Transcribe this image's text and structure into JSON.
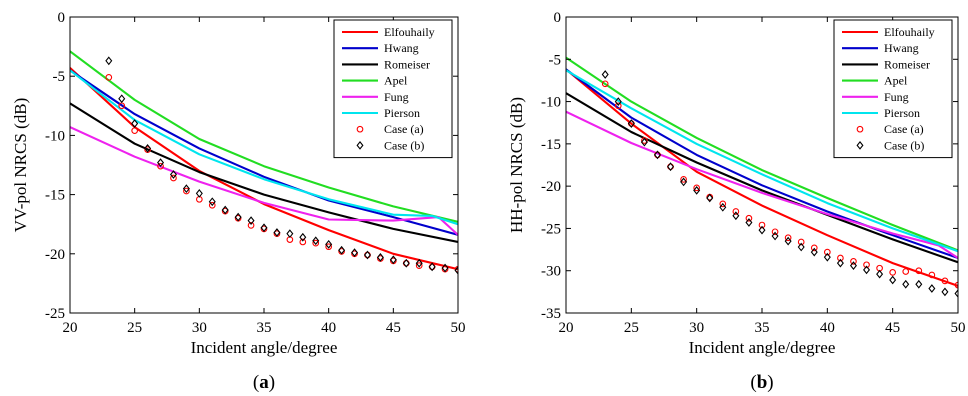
{
  "colors": {
    "Elfouhaily": "#ff0000",
    "Hwang": "#0000cc",
    "Romeiser": "#000000",
    "Apel": "#22dd22",
    "Fung": "#ee22ee",
    "Pierson": "#00e5ee",
    "Case (a)": "#ff0000",
    "Case (b)": "#000000"
  },
  "chart_data": [
    {
      "type": "line",
      "caption": {
        "open": "(",
        "letter": "a",
        "close": ")"
      },
      "xlabel": "Incident angle/degree",
      "ylabel": "VV-pol NRCS (dB)",
      "xlim": [
        20,
        50
      ],
      "ylim": [
        -25,
        0
      ],
      "xticks": [
        "20",
        "25",
        "30",
        "35",
        "40",
        "45",
        "50"
      ],
      "yticks": [
        "-25",
        "-20",
        "-15",
        "-10",
        "-5",
        "0"
      ],
      "grid": false,
      "legend": "top-right",
      "series": [
        {
          "name": "Elfouhaily",
          "style": "line",
          "x": [
            20,
            25,
            30,
            35,
            40,
            45,
            50
          ],
          "y": [
            -4.3,
            -9.3,
            -13.0,
            -15.8,
            -18.0,
            -20.0,
            -21.3
          ]
        },
        {
          "name": "Hwang",
          "style": "line",
          "x": [
            20,
            25,
            30,
            35,
            40,
            45,
            50
          ],
          "y": [
            -4.5,
            -8.2,
            -11.1,
            -13.5,
            -15.5,
            -16.9,
            -18.4
          ]
        },
        {
          "name": "Romeiser",
          "style": "line",
          "x": [
            20,
            25,
            30,
            35,
            40,
            45,
            50
          ],
          "y": [
            -7.3,
            -10.7,
            -13.1,
            -15.0,
            -16.5,
            -17.9,
            -19.0
          ]
        },
        {
          "name": "Apel",
          "style": "line",
          "x": [
            20,
            25,
            30,
            35,
            40,
            45,
            50
          ],
          "y": [
            -2.9,
            -7.0,
            -10.3,
            -12.6,
            -14.4,
            -16.0,
            -17.3
          ]
        },
        {
          "name": "Fung",
          "style": "line",
          "x": [
            20,
            25,
            30,
            35,
            40,
            45,
            48.5,
            50
          ],
          "y": [
            -9.3,
            -11.8,
            -13.9,
            -15.7,
            -17.1,
            -17.2,
            -16.9,
            -18.4
          ]
        },
        {
          "name": "Pierson",
          "style": "line",
          "x": [
            20,
            25,
            30,
            35,
            40,
            45,
            48,
            50
          ],
          "y": [
            -4.5,
            -8.7,
            -11.6,
            -13.7,
            -15.4,
            -16.7,
            -16.8,
            -17.5
          ]
        },
        {
          "name": "Case (a)",
          "style": "circle",
          "x": [
            23,
            24,
            25,
            26,
            27,
            28,
            29,
            30,
            31,
            32,
            33,
            34,
            35,
            36,
            37,
            38,
            39,
            40,
            41,
            42,
            43,
            44,
            45,
            46,
            47,
            48,
            49,
            50
          ],
          "y": [
            -5.1,
            -7.5,
            -9.6,
            -11.2,
            -12.6,
            -13.6,
            -14.7,
            -15.4,
            -15.9,
            -16.4,
            -17.0,
            -17.6,
            -17.9,
            -18.3,
            -18.8,
            -19.0,
            -19.1,
            -19.4,
            -19.8,
            -20.0,
            -20.1,
            -20.4,
            -20.6,
            -20.8,
            -21.0,
            -21.1,
            -21.3,
            -21.3
          ]
        },
        {
          "name": "Case (b)",
          "style": "diamond",
          "x": [
            23,
            24,
            25,
            26,
            27,
            28,
            29,
            30,
            31,
            32,
            33,
            34,
            35,
            36,
            37,
            38,
            39,
            40,
            41,
            42,
            43,
            44,
            45,
            46,
            47,
            48,
            49,
            50
          ],
          "y": [
            -3.7,
            -6.9,
            -9.0,
            -11.1,
            -12.3,
            -13.3,
            -14.5,
            -14.9,
            -15.6,
            -16.3,
            -16.9,
            -17.2,
            -17.8,
            -18.2,
            -18.3,
            -18.6,
            -18.9,
            -19.2,
            -19.7,
            -19.9,
            -20.1,
            -20.3,
            -20.5,
            -20.8,
            -20.8,
            -21.1,
            -21.2,
            -21.4
          ]
        }
      ]
    },
    {
      "type": "line",
      "caption": {
        "open": "(",
        "letter": "b",
        "close": ")"
      },
      "xlabel": "Incident angle/degree",
      "ylabel": "HH-pol NRCS (dB)",
      "xlim": [
        20,
        50
      ],
      "ylim": [
        -35,
        0
      ],
      "xticks": [
        "20",
        "25",
        "30",
        "35",
        "40",
        "45",
        "50"
      ],
      "yticks": [
        "-35",
        "-30",
        "-25",
        "-20",
        "-15",
        "-10",
        "-5",
        "0"
      ],
      "grid": false,
      "legend": "top-right",
      "series": [
        {
          "name": "Elfouhaily",
          "style": "line",
          "x": [
            20,
            25,
            30,
            35,
            40,
            45,
            50
          ],
          "y": [
            -6.2,
            -12.6,
            -18.3,
            -22.3,
            -25.8,
            -29.1,
            -31.8
          ]
        },
        {
          "name": "Hwang",
          "style": "line",
          "x": [
            20,
            25,
            30,
            35,
            40,
            45,
            50
          ],
          "y": [
            -6.2,
            -11.9,
            -16.3,
            -19.9,
            -23.0,
            -25.8,
            -28.5
          ]
        },
        {
          "name": "Romeiser",
          "style": "line",
          "x": [
            20,
            25,
            30,
            35,
            40,
            45,
            50
          ],
          "y": [
            -9.0,
            -13.6,
            -17.2,
            -20.5,
            -23.4,
            -26.3,
            -29.0
          ]
        },
        {
          "name": "Apel",
          "style": "line",
          "x": [
            20,
            25,
            30,
            35,
            40,
            45,
            50
          ],
          "y": [
            -4.8,
            -10.0,
            -14.3,
            -18.1,
            -21.4,
            -24.6,
            -27.6
          ]
        },
        {
          "name": "Fung",
          "style": "line",
          "x": [
            20,
            25,
            30,
            35,
            40,
            45,
            48.5,
            50
          ],
          "y": [
            -11.2,
            -14.9,
            -18.0,
            -20.8,
            -23.3,
            -25.6,
            -27.0,
            -28.5
          ]
        },
        {
          "name": "Pierson",
          "style": "line",
          "x": [
            20,
            25,
            30,
            35,
            40,
            45,
            48,
            50
          ],
          "y": [
            -6.3,
            -10.8,
            -15.0,
            -18.6,
            -22.0,
            -25.0,
            -26.6,
            -27.7
          ]
        },
        {
          "name": "Case (a)",
          "style": "circle",
          "x": [
            23,
            24,
            25,
            26,
            27,
            28,
            29,
            30,
            31,
            32,
            33,
            34,
            35,
            36,
            37,
            38,
            39,
            40,
            41,
            42,
            43,
            44,
            45,
            46,
            47,
            48,
            49,
            50
          ],
          "y": [
            -7.9,
            -10.5,
            -12.6,
            -14.6,
            -16.3,
            -17.7,
            -19.2,
            -20.2,
            -21.3,
            -22.1,
            -23.0,
            -23.8,
            -24.6,
            -25.4,
            -26.1,
            -26.6,
            -27.3,
            -27.8,
            -28.5,
            -28.9,
            -29.3,
            -29.7,
            -30.2,
            -30.1,
            -30.0,
            -30.5,
            -31.2,
            -31.7
          ]
        },
        {
          "name": "Case (b)",
          "style": "diamond",
          "x": [
            23,
            24,
            25,
            26,
            27,
            28,
            29,
            30,
            31,
            32,
            33,
            34,
            35,
            36,
            37,
            38,
            39,
            40,
            41,
            42,
            43,
            44,
            45,
            46,
            47,
            48,
            49,
            50
          ],
          "y": [
            -6.8,
            -10.0,
            -12.6,
            -14.8,
            -16.3,
            -17.7,
            -19.5,
            -20.5,
            -21.4,
            -22.5,
            -23.5,
            -24.3,
            -25.2,
            -25.9,
            -26.5,
            -27.2,
            -27.8,
            -28.4,
            -29.1,
            -29.4,
            -29.9,
            -30.4,
            -31.1,
            -31.6,
            -31.6,
            -32.1,
            -32.5,
            -32.7
          ]
        }
      ]
    }
  ]
}
